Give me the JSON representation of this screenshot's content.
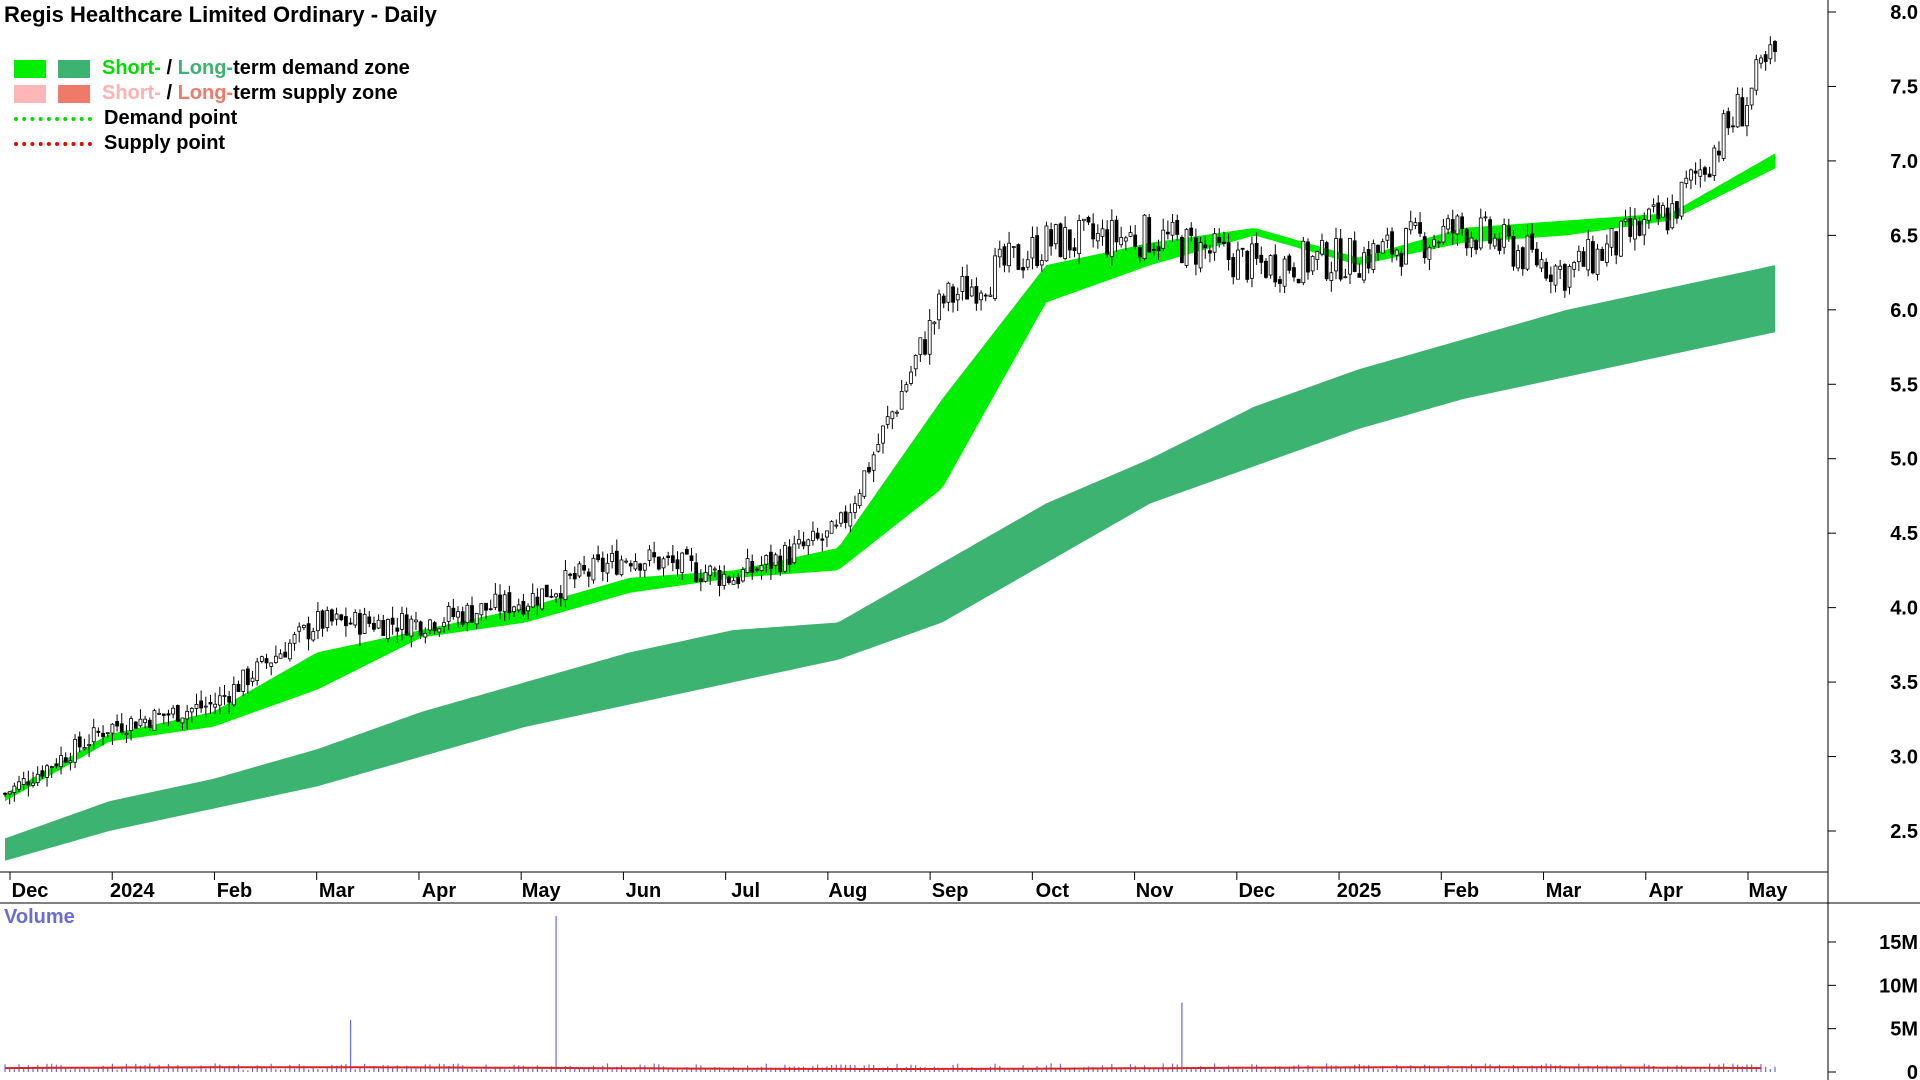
{
  "title": "Regis Healthcare Limited Ordinary - Daily",
  "legend": {
    "demand_short": "Short-",
    "demand_sep": " / ",
    "demand_long": "Long-",
    "demand_rest": "term demand zone",
    "supply_short": "Short-",
    "supply_sep": " / ",
    "supply_long": "Long-",
    "supply_rest": "term supply zone",
    "demand_point": "Demand point",
    "supply_point": "Supply point"
  },
  "volume_label": "Volume",
  "colors": {
    "short_demand": "#00ee00",
    "long_demand": "#3cb371",
    "short_supply": "#ffb6b6",
    "long_supply": "#f07a6a",
    "demand_point": "#00dd00",
    "supply_point": "#ee0000",
    "volume_bar": "#6a6ad8",
    "volume_avg": "#dd2222",
    "candle": "#000000"
  },
  "chart_data": [
    {
      "type": "candlestick",
      "title": "Regis Healthcare Limited Ordinary - Daily",
      "x_tick_labels": [
        "Dec",
        "2024",
        "Feb",
        "Mar",
        "Apr",
        "May",
        "Jun",
        "Jul",
        "Aug",
        "Sep",
        "Oct",
        "Nov",
        "Dec",
        "2025",
        "Feb",
        "Mar",
        "Apr",
        "May"
      ],
      "y_tick_labels": [
        "8.0",
        "7.5",
        "7.0",
        "6.5",
        "6.0",
        "5.5",
        "5.0",
        "4.5",
        "4.0",
        "3.5",
        "3.0",
        "2.5"
      ],
      "y_ticks": [
        8.0,
        7.5,
        7.0,
        6.5,
        6.0,
        5.5,
        5.0,
        4.5,
        4.0,
        3.5,
        3.0,
        2.5
      ],
      "ylim": [
        2.2,
        8.1
      ],
      "y_axis_position": "right",
      "grid": false,
      "legend_position": "top-left",
      "close_by_month": [
        {
          "month": "Dec 2023",
          "close": 2.75
        },
        {
          "month": "Jan 2024",
          "close": 3.2
        },
        {
          "month": "Feb 2024",
          "close": 3.35
        },
        {
          "month": "Mar 2024",
          "close": 3.9
        },
        {
          "month": "Apr 2024",
          "close": 3.9
        },
        {
          "month": "May 2024",
          "close": 4.05
        },
        {
          "month": "Jun 2024",
          "close": 4.35
        },
        {
          "month": "Jul 2024",
          "close": 4.2
        },
        {
          "month": "Aug 2024",
          "close": 4.5
        },
        {
          "month": "Sep 2024",
          "close": 6.05
        },
        {
          "month": "Oct 2024",
          "close": 6.45
        },
        {
          "month": "Nov 2024",
          "close": 6.5
        },
        {
          "month": "Dec 2024",
          "close": 6.3
        },
        {
          "month": "Jan 2025",
          "close": 6.35
        },
        {
          "month": "Feb 2025",
          "close": 6.55
        },
        {
          "month": "Mar 2025",
          "close": 6.25
        },
        {
          "month": "Apr 2025",
          "close": 6.65
        },
        {
          "month": "May 2025",
          "close": 7.7
        }
      ],
      "long_term_zone_upper": [
        2.45,
        2.7,
        2.85,
        3.05,
        3.3,
        3.5,
        3.7,
        3.85,
        3.9,
        4.3,
        4.7,
        5.0,
        5.35,
        5.6,
        5.8,
        6.0,
        6.15,
        6.3
      ],
      "long_term_zone_lower": [
        2.3,
        2.5,
        2.65,
        2.8,
        3.0,
        3.2,
        3.35,
        3.5,
        3.65,
        3.9,
        4.3,
        4.7,
        4.95,
        5.2,
        5.4,
        5.55,
        5.7,
        5.85
      ],
      "short_term_zone_upper": [
        2.75,
        3.15,
        3.3,
        3.7,
        3.85,
        4.0,
        4.2,
        4.25,
        4.4,
        5.4,
        6.3,
        6.45,
        6.55,
        6.35,
        6.55,
        6.6,
        6.65,
        7.05
      ],
      "short_term_zone_lower": [
        2.7,
        3.1,
        3.2,
        3.45,
        3.8,
        3.9,
        4.1,
        4.2,
        4.25,
        4.8,
        6.05,
        6.3,
        6.5,
        6.3,
        6.45,
        6.5,
        6.6,
        6.95
      ]
    },
    {
      "type": "bar",
      "title": "Volume",
      "y_tick_labels": [
        "15M",
        "10M",
        "5M",
        "0"
      ],
      "y_ticks": [
        15000000,
        10000000,
        5000000,
        0
      ],
      "ylim": [
        0,
        19000000
      ],
      "spikes": [
        {
          "month": "Mar 2024",
          "value": 6000000
        },
        {
          "month": "May 2024",
          "value": 18000000
        },
        {
          "month": "Nov 2024",
          "value": 8000000
        }
      ],
      "typical_value": 500000
    }
  ]
}
